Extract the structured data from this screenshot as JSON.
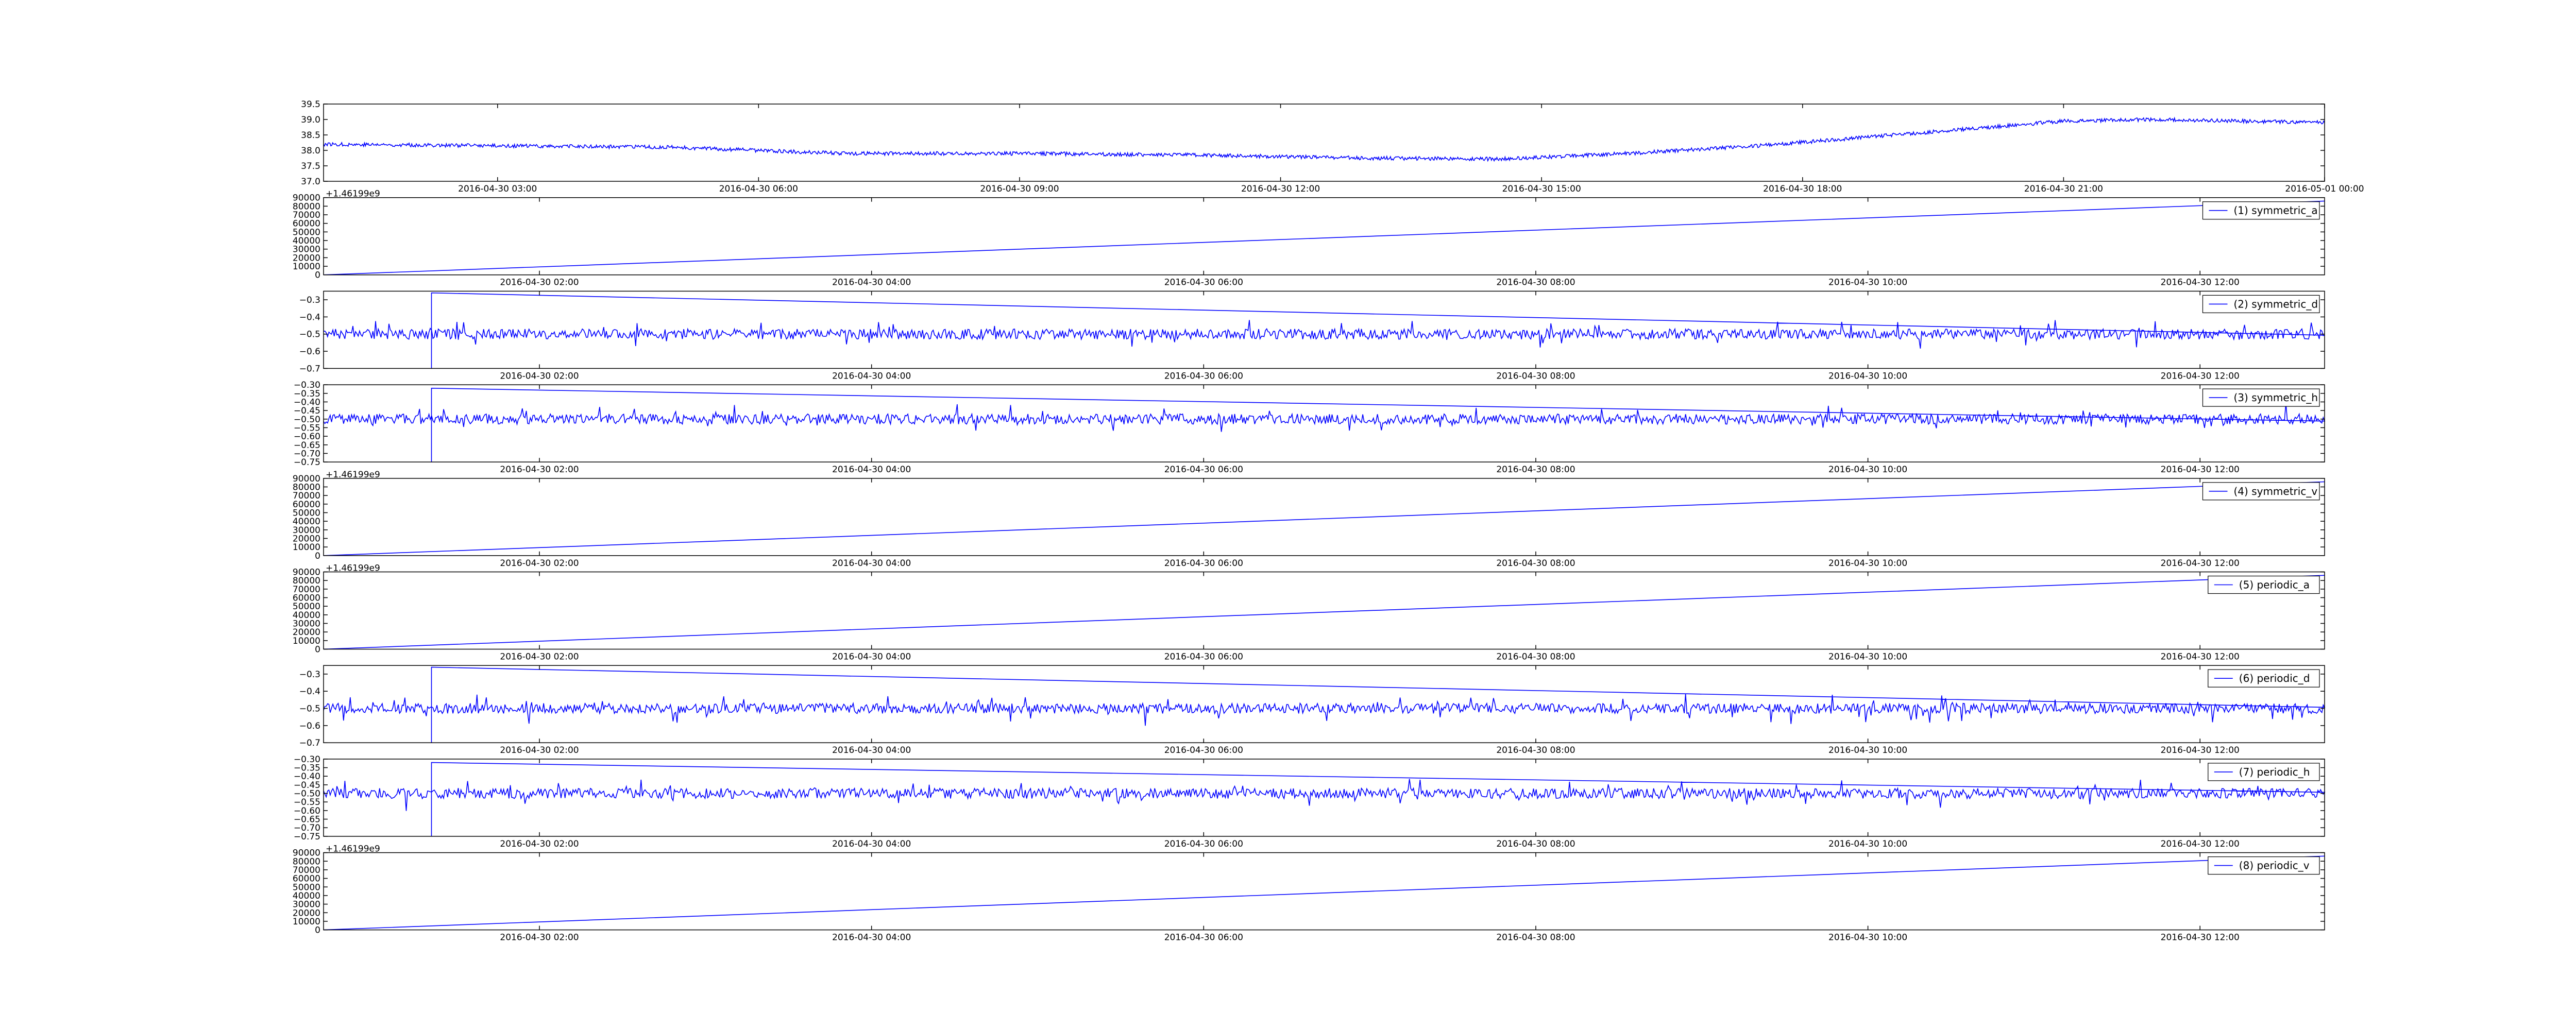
{
  "chart_data": [
    {
      "type": "line",
      "title": "",
      "xlabel": "",
      "ylabel": "",
      "x_type": "datetime",
      "xlim": [
        "2016-04-30 01:00",
        "2016-05-01 00:00"
      ],
      "ylim": [
        37.0,
        39.5
      ],
      "yticks": [
        "37.0",
        "37.5",
        "38.0",
        "38.5",
        "39.0",
        "39.5"
      ],
      "xticks": [
        "2016-04-30 03:00",
        "2016-04-30 06:00",
        "2016-04-30 09:00",
        "2016-04-30 12:00",
        "2016-04-30 15:00",
        "2016-04-30 18:00",
        "2016-04-30 21:00",
        "2016-05-01 00:00"
      ],
      "series": [
        {
          "color": "#0000ff",
          "noise": 0.06,
          "x": [
            "2016-04-30 01:00",
            "2016-04-30 03:00",
            "2016-04-30 05:00",
            "2016-04-30 07:00",
            "2016-04-30 09:00",
            "2016-04-30 11:00",
            "2016-04-30 13:00",
            "2016-04-30 14:30",
            "2016-04-30 16:00",
            "2016-04-30 17:30",
            "2016-04-30 19:30",
            "2016-04-30 21:00",
            "2016-04-30 22:00",
            "2016-05-01 00:00"
          ],
          "values": [
            38.2,
            38.15,
            38.1,
            37.9,
            37.9,
            37.85,
            37.75,
            37.72,
            37.9,
            38.15,
            38.6,
            38.95,
            39.0,
            38.9
          ]
        }
      ],
      "legend": null,
      "grid": false
    },
    {
      "type": "line",
      "title": "",
      "xlabel": "",
      "ylabel": "",
      "x_type": "datetime",
      "xlim": [
        "2016-04-30 00:42",
        "2016-04-30 12:45"
      ],
      "ylim": [
        0,
        90000
      ],
      "offset_label": "+1.46199e9",
      "yticks": [
        "0",
        "10000",
        "20000",
        "30000",
        "40000",
        "50000",
        "60000",
        "70000",
        "80000",
        "90000"
      ],
      "xticks": [
        "2016-04-30 02:00",
        "2016-04-30 04:00",
        "2016-04-30 06:00",
        "2016-04-30 08:00",
        "2016-04-30 10:00",
        "2016-04-30 12:00"
      ],
      "series": [
        {
          "name": "(1) symmetric_a",
          "color": "#0000ff",
          "x": [
            "2016-04-30 00:42",
            "2016-04-30 12:45"
          ],
          "values": [
            0,
            86000
          ]
        }
      ],
      "legend": "top-right",
      "grid": false
    },
    {
      "type": "line",
      "title": "",
      "xlabel": "",
      "ylabel": "",
      "x_type": "datetime",
      "xlim": [
        "2016-04-30 00:42",
        "2016-04-30 12:45"
      ],
      "ylim": [
        -0.7,
        -0.25
      ],
      "yticks": [
        "−0.7",
        "−0.6",
        "−0.5",
        "−0.4",
        "−0.3"
      ],
      "xticks": [
        "2016-04-30 02:00",
        "2016-04-30 04:00",
        "2016-04-30 06:00",
        "2016-04-30 08:00",
        "2016-04-30 10:00",
        "2016-04-30 12:00"
      ],
      "series": [
        {
          "name": "(2) symmetric_d",
          "color": "#0000ff",
          "baseline": -0.5,
          "noise": 0.06,
          "spike": {
            "x": "2016-04-30 01:21",
            "low": -0.7,
            "high": -0.26
          }
        }
      ],
      "legend": "top-right",
      "grid": false
    },
    {
      "type": "line",
      "title": "",
      "xlabel": "",
      "ylabel": "",
      "x_type": "datetime",
      "xlim": [
        "2016-04-30 00:42",
        "2016-04-30 12:45"
      ],
      "ylim": [
        -0.75,
        -0.3
      ],
      "yticks": [
        "−0.75",
        "−0.70",
        "−0.65",
        "−0.60",
        "−0.55",
        "−0.50",
        "−0.45",
        "−0.40",
        "−0.35",
        "−0.30"
      ],
      "xticks": [
        "2016-04-30 02:00",
        "2016-04-30 04:00",
        "2016-04-30 06:00",
        "2016-04-30 08:00",
        "2016-04-30 10:00",
        "2016-04-30 12:00"
      ],
      "series": [
        {
          "name": "(3) symmetric_h",
          "color": "#0000ff",
          "baseline": -0.5,
          "noise": 0.06,
          "spike": {
            "x": "2016-04-30 01:21",
            "low": -0.75,
            "high": -0.32
          }
        }
      ],
      "legend": "top-right",
      "grid": false
    },
    {
      "type": "line",
      "title": "",
      "xlabel": "",
      "ylabel": "",
      "x_type": "datetime",
      "xlim": [
        "2016-04-30 00:42",
        "2016-04-30 12:45"
      ],
      "ylim": [
        0,
        90000
      ],
      "offset_label": "+1.46199e9",
      "yticks": [
        "0",
        "10000",
        "20000",
        "30000",
        "40000",
        "50000",
        "60000",
        "70000",
        "80000",
        "90000"
      ],
      "xticks": [
        "2016-04-30 02:00",
        "2016-04-30 04:00",
        "2016-04-30 06:00",
        "2016-04-30 08:00",
        "2016-04-30 10:00",
        "2016-04-30 12:00"
      ],
      "series": [
        {
          "name": "(4) symmetric_v",
          "color": "#0000ff",
          "x": [
            "2016-04-30 00:42",
            "2016-04-30 12:45"
          ],
          "values": [
            0,
            86000
          ]
        }
      ],
      "legend": "top-right",
      "grid": false
    },
    {
      "type": "line",
      "title": "",
      "xlabel": "",
      "ylabel": "",
      "x_type": "datetime",
      "xlim": [
        "2016-04-30 00:42",
        "2016-04-30 12:45"
      ],
      "ylim": [
        0,
        90000
      ],
      "offset_label": "+1.46199e9",
      "yticks": [
        "0",
        "10000",
        "20000",
        "30000",
        "40000",
        "50000",
        "60000",
        "70000",
        "80000",
        "90000"
      ],
      "xticks": [
        "2016-04-30 02:00",
        "2016-04-30 04:00",
        "2016-04-30 06:00",
        "2016-04-30 08:00",
        "2016-04-30 10:00",
        "2016-04-30 12:00"
      ],
      "series": [
        {
          "name": "(5) periodic_a",
          "color": "#0000ff",
          "x": [
            "2016-04-30 00:42",
            "2016-04-30 12:45"
          ],
          "values": [
            0,
            86000
          ]
        }
      ],
      "legend": "top-right",
      "grid": false
    },
    {
      "type": "line",
      "title": "",
      "xlabel": "",
      "ylabel": "",
      "x_type": "datetime",
      "xlim": [
        "2016-04-30 00:42",
        "2016-04-30 12:45"
      ],
      "ylim": [
        -0.7,
        -0.25
      ],
      "yticks": [
        "−0.7",
        "−0.6",
        "−0.5",
        "−0.4",
        "−0.3"
      ],
      "xticks": [
        "2016-04-30 02:00",
        "2016-04-30 04:00",
        "2016-04-30 06:00",
        "2016-04-30 08:00",
        "2016-04-30 10:00",
        "2016-04-30 12:00"
      ],
      "series": [
        {
          "name": "(6) periodic_d",
          "color": "#0000ff",
          "baseline": -0.5,
          "noise": 0.06,
          "spike": {
            "x": "2016-04-30 01:21",
            "low": -0.7,
            "high": -0.26
          }
        }
      ],
      "legend": "top-right",
      "grid": false
    },
    {
      "type": "line",
      "title": "",
      "xlabel": "",
      "ylabel": "",
      "x_type": "datetime",
      "xlim": [
        "2016-04-30 00:42",
        "2016-04-30 12:45"
      ],
      "ylim": [
        -0.75,
        -0.3
      ],
      "yticks": [
        "−0.75",
        "−0.70",
        "−0.65",
        "−0.60",
        "−0.55",
        "−0.50",
        "−0.45",
        "−0.40",
        "−0.35",
        "−0.30"
      ],
      "xticks": [
        "2016-04-30 02:00",
        "2016-04-30 04:00",
        "2016-04-30 06:00",
        "2016-04-30 08:00",
        "2016-04-30 10:00",
        "2016-04-30 12:00"
      ],
      "series": [
        {
          "name": "(7) periodic_h",
          "color": "#0000ff",
          "baseline": -0.5,
          "noise": 0.06,
          "spike": {
            "x": "2016-04-30 01:21",
            "low": -0.75,
            "high": -0.32
          }
        }
      ],
      "legend": "top-right",
      "grid": false
    },
    {
      "type": "line",
      "title": "",
      "xlabel": "",
      "ylabel": "",
      "x_type": "datetime",
      "xlim": [
        "2016-04-30 00:42",
        "2016-04-30 12:45"
      ],
      "ylim": [
        0,
        90000
      ],
      "offset_label": "+1.46199e9",
      "yticks": [
        "0",
        "10000",
        "20000",
        "30000",
        "40000",
        "50000",
        "60000",
        "70000",
        "80000",
        "90000"
      ],
      "xticks": [
        "2016-04-30 02:00",
        "2016-04-30 04:00",
        "2016-04-30 06:00",
        "2016-04-30 08:00",
        "2016-04-30 10:00",
        "2016-04-30 12:00"
      ],
      "series": [
        {
          "name": "(8) periodic_v",
          "color": "#0000ff",
          "x": [
            "2016-04-30 00:42",
            "2016-04-30 12:45"
          ],
          "values": [
            0,
            86000
          ]
        }
      ],
      "legend": "top-right",
      "grid": false
    }
  ]
}
